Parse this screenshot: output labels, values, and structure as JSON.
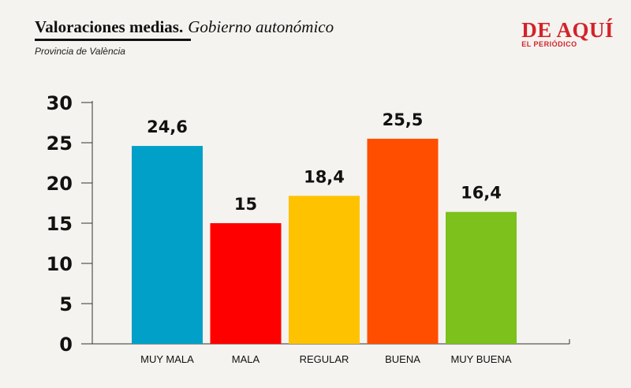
{
  "header": {
    "title": "Valoraciones medias.",
    "title_sub": "Gobierno autonómico",
    "subtitle": "Provincia de València"
  },
  "brand": {
    "name": "DE AQUÍ",
    "tagline": "EL PERIÓDICO",
    "color": "#d4222a"
  },
  "chart_data": {
    "type": "bar",
    "title": "Valoraciones medias. Gobierno autonómico",
    "subtitle": "Provincia de València",
    "categories": [
      "MUY MALA",
      "MALA",
      "REGULAR",
      "BUENA",
      "MUY BUENA"
    ],
    "values": [
      24.6,
      15,
      18.4,
      25.5,
      16.4
    ],
    "value_labels": [
      "24,6",
      "15",
      "18,4",
      "25,5",
      "16,4"
    ],
    "colors": [
      "#00a0c8",
      "#ff0000",
      "#ffc200",
      "#ff4e00",
      "#7cc11c"
    ],
    "ylim": [
      0,
      30
    ],
    "yticks": [
      0,
      5,
      10,
      15,
      20,
      25,
      30
    ],
    "xlabel": "",
    "ylabel": "",
    "grid": false,
    "legend": "none"
  }
}
